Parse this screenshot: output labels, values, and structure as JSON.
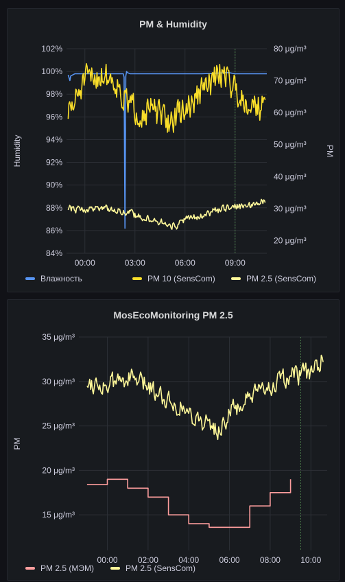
{
  "panels": [
    {
      "title": "PM & Humidity",
      "legend": [
        "Влажность",
        "PM 10 (SensCom)",
        "PM 2.5 (SensCom)"
      ]
    },
    {
      "title": "MosEcoMonitoring PM 2.5",
      "legend": [
        "PM 2.5 (МЭМ)",
        "PM 2.5 (SensCom)"
      ]
    }
  ],
  "colors": {
    "background": "#111217",
    "panel": "#181b1f",
    "humidity": "#5794f2",
    "pm10": "#fade2a",
    "pm25": "#fff899",
    "pm25_mem": "#ff9e9e",
    "now_marker": "#4a7a4a"
  },
  "chart_data": [
    {
      "type": "line",
      "title": "PM & Humidity",
      "x_unit": "hours relative to 00:00",
      "x_range": [
        -1.1,
        10.9
      ],
      "x_ticks": [
        "00:00",
        "03:00",
        "06:00",
        "09:00"
      ],
      "x_tick_values": [
        0,
        3,
        6,
        9
      ],
      "now_marker_x": 9.0,
      "grid": true,
      "legend_placement": "bottom",
      "y_left": {
        "label": "Humidity",
        "range": [
          84,
          102
        ],
        "ticks": [
          "84%",
          "86%",
          "88%",
          "90%",
          "92%",
          "94%",
          "96%",
          "98%",
          "100%",
          "102%"
        ],
        "tick_values": [
          84,
          86,
          88,
          90,
          92,
          94,
          96,
          98,
          100,
          102
        ]
      },
      "y_right": {
        "label": "PM",
        "range": [
          16,
          80
        ],
        "ticks": [
          "20 μg/m³",
          "30 μg/m³",
          "40 μg/m³",
          "50 μg/m³",
          "60 μg/m³",
          "70 μg/m³",
          "80 μg/m³"
        ],
        "tick_values": [
          20,
          30,
          40,
          50,
          60,
          70,
          80
        ]
      },
      "series": [
        {
          "name": "Влажность",
          "axis": "left",
          "color": "#5794f2",
          "x": [
            -1,
            -0.9,
            -0.85,
            -0.6,
            0,
            1,
            2,
            2.3,
            2.35,
            2.4,
            2.45,
            2.5,
            2.55,
            2.7,
            3,
            5,
            7,
            8.6,
            9,
            10.9
          ],
          "y": [
            99.7,
            99.2,
            99.6,
            99.8,
            99.8,
            99.8,
            99.8,
            99.8,
            99.5,
            86.2,
            99.6,
            100.0,
            99.9,
            99.8,
            99.8,
            99.8,
            99.8,
            99.9,
            99.8,
            99.8
          ],
          "noise": 0
        },
        {
          "name": "PM 10 (SensCom)",
          "axis": "right",
          "color": "#fade2a",
          "x": [
            -1,
            -0.7,
            -0.3,
            0,
            0.5,
            1,
            1.5,
            2,
            2.3,
            2.6,
            3,
            3.5,
            4,
            4.5,
            5,
            5.5,
            6,
            6.5,
            7,
            7.5,
            8,
            8.4,
            8.8,
            9.2,
            9.6,
            10,
            10.5,
            10.8
          ],
          "y": [
            60,
            62,
            67,
            70,
            71,
            72,
            71,
            69,
            64,
            63,
            61,
            60,
            61,
            59,
            57,
            59,
            61,
            63,
            67,
            69,
            72,
            73,
            69,
            66,
            64,
            63,
            62,
            61
          ],
          "noise": 4
        },
        {
          "name": "PM 2.5 (SensCom)",
          "axis": "right",
          "color": "#fff899",
          "x": [
            -1,
            0,
            1,
            2,
            3,
            4,
            5,
            5.5,
            6,
            7,
            8,
            9,
            10,
            10.8
          ],
          "y": [
            30,
            29.5,
            30.5,
            29.5,
            28,
            26.5,
            25,
            24.5,
            26.5,
            28,
            29.5,
            30.5,
            31,
            32.5
          ],
          "noise": 1
        }
      ]
    },
    {
      "type": "line",
      "title": "MosEcoMonitoring PM 2.5",
      "x_unit": "hours relative to 00:00",
      "x_range": [
        -1.4,
        10.8
      ],
      "x_ticks": [
        "00:00",
        "02:00",
        "04:00",
        "06:00",
        "08:00",
        "10:00"
      ],
      "x_tick_values": [
        0,
        2,
        4,
        6,
        8,
        10
      ],
      "now_marker_x": 9.5,
      "grid": true,
      "legend_placement": "bottom",
      "y": {
        "label": "PM",
        "range": [
          11,
          35
        ],
        "ticks": [
          "15 μg/m³",
          "20 μg/m³",
          "25 μg/m³",
          "30 μg/m³",
          "35 μg/m³"
        ],
        "tick_values": [
          15,
          20,
          25,
          30,
          35
        ]
      },
      "series": [
        {
          "name": "PM 2.5 (МЭМ)",
          "color": "#ff9e9e",
          "step": true,
          "x": [
            -1,
            0,
            1,
            2,
            3,
            4,
            5,
            6,
            7,
            8,
            9
          ],
          "y": [
            18.4,
            19.0,
            18.0,
            17.0,
            15.0,
            14.0,
            13.6,
            13.6,
            16.0,
            17.5,
            19.0
          ]
        },
        {
          "name": "PM 2.5 (SensCom)",
          "color": "#fff899",
          "x": [
            -1,
            0,
            1,
            2,
            3,
            4,
            5,
            5.5,
            6,
            7,
            8,
            9,
            10,
            10.6
          ],
          "y": [
            30,
            29.5,
            30.5,
            29.5,
            28,
            26.5,
            25,
            24.5,
            26.5,
            28,
            29.5,
            30.5,
            31,
            32.5
          ],
          "noise": 1
        }
      ]
    }
  ]
}
